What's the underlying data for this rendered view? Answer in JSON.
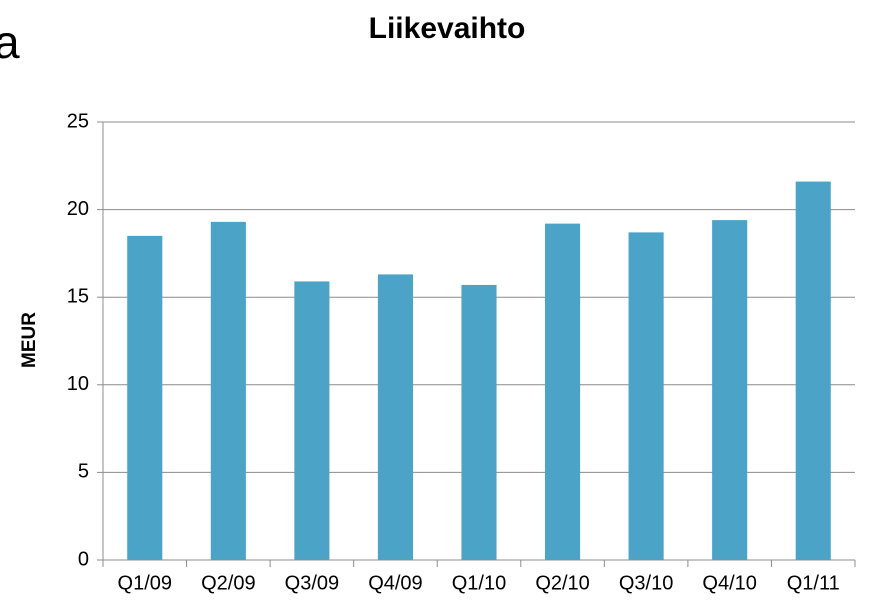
{
  "chart_data": {
    "type": "bar",
    "title": "Liikevaihto",
    "annotation": "a",
    "y_label": "MEUR",
    "categories": [
      "Q1/09",
      "Q2/09",
      "Q3/09",
      "Q4/09",
      "Q1/10",
      "Q2/10",
      "Q3/10",
      "Q4/10",
      "Q1/11"
    ],
    "values": [
      18.5,
      19.3,
      15.9,
      16.3,
      15.7,
      19.2,
      18.7,
      19.4,
      21.6
    ],
    "color": "#4ba3c8",
    "ylim": [
      0,
      25
    ],
    "yticks": [
      0,
      5,
      10,
      15,
      20,
      25
    ],
    "grid": true
  }
}
